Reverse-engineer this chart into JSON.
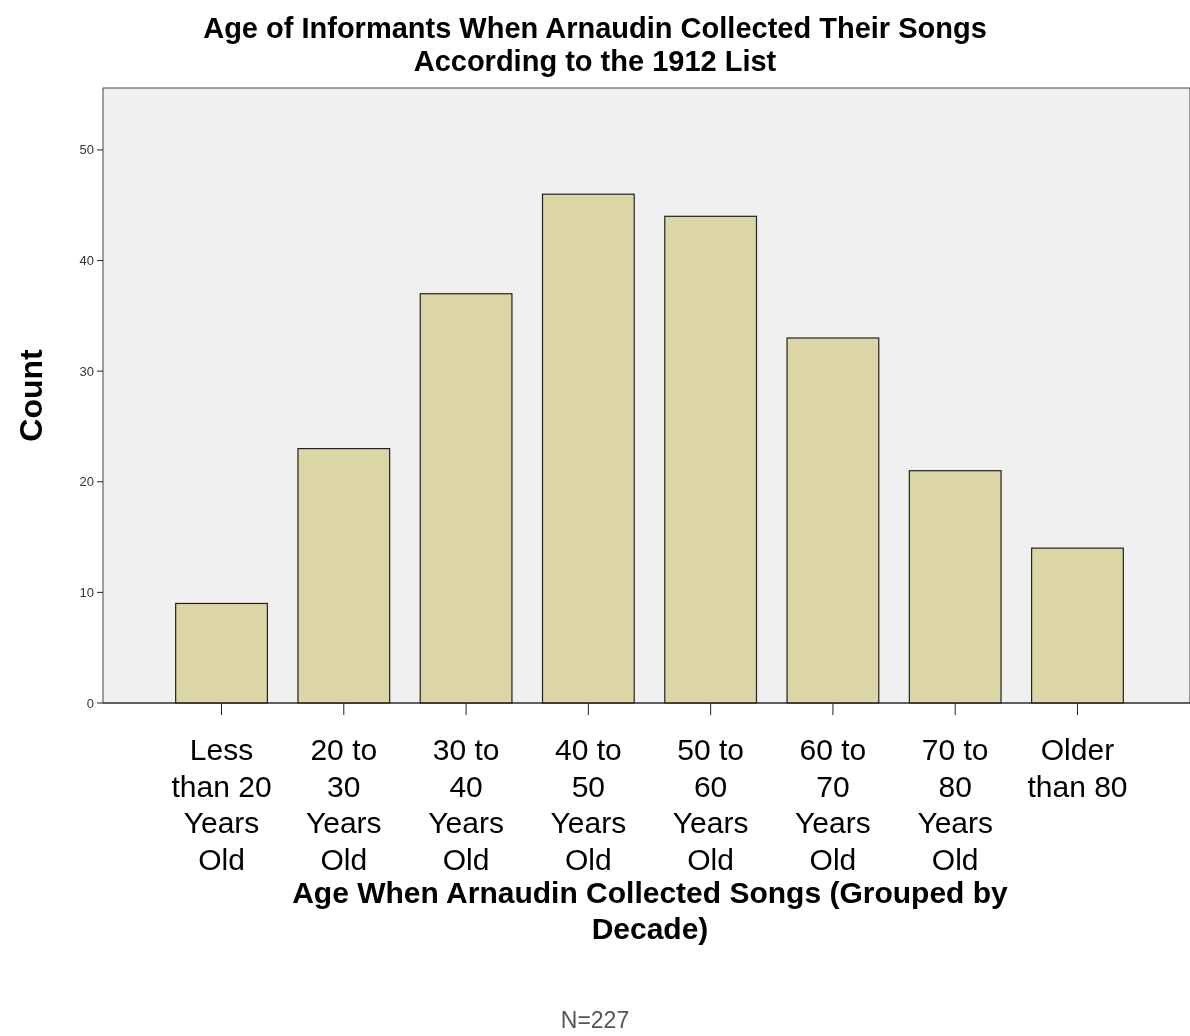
{
  "chart_data": {
    "type": "bar",
    "title": "Age of Informants When Arnaudin Collected Their Songs\nAccording to the 1912 List",
    "xlabel": "Age When Arnaudin Collected Songs (Grouped by\nDecade)",
    "ylabel": "Count",
    "categories": [
      "Less\nthan 20\nYears\nOld",
      "20 to\n30\nYears\nOld",
      "30 to\n40\nYears\nOld",
      "40 to\n50\nYears\nOld",
      "50 to\n60\nYears\nOld",
      "60 to\n70\nYears\nOld",
      "70 to\n80\nYears\nOld",
      "Older\nthan 80"
    ],
    "values": [
      9,
      23,
      37,
      46,
      44,
      33,
      21,
      14
    ],
    "color": "#dcd6a6",
    "ylim": [
      0,
      55.6
    ],
    "yticks": [
      0,
      10,
      20,
      30,
      40,
      50
    ],
    "grid": false,
    "annotations": [
      "N=227"
    ]
  }
}
